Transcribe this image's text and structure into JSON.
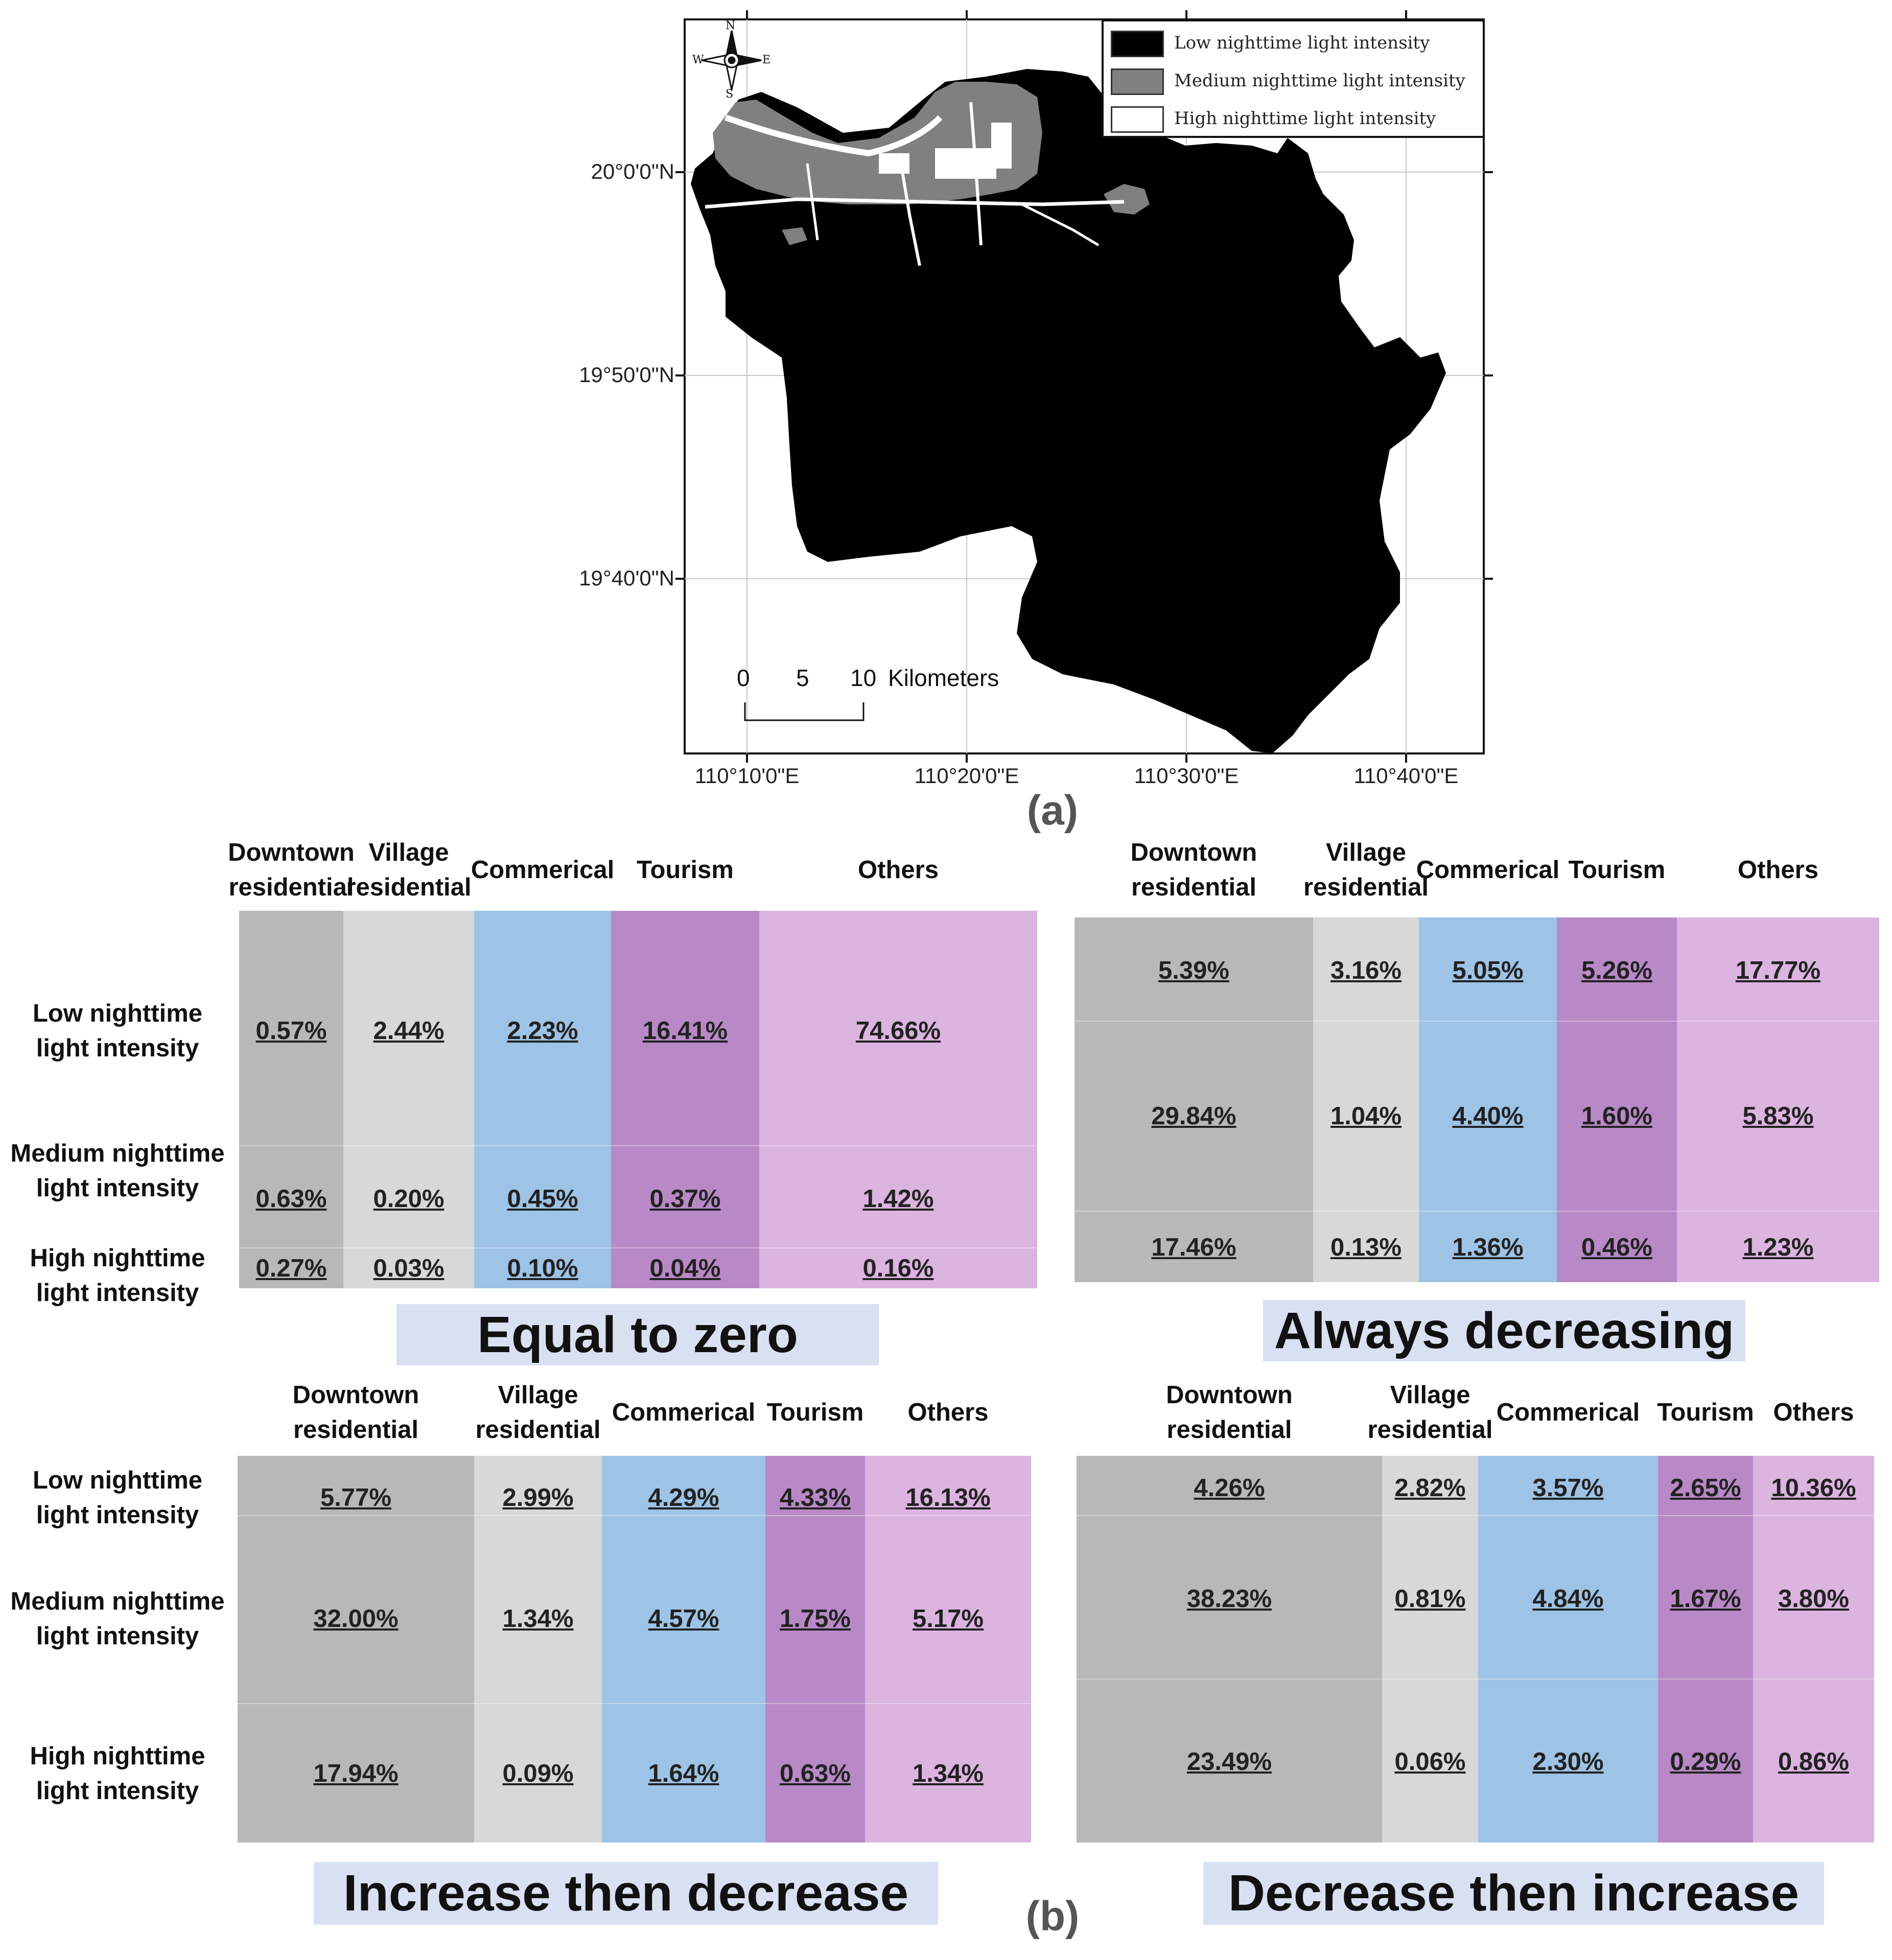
{
  "map": {
    "panel_label": "(a)",
    "lat_labels": [
      "20°0'0\"N",
      "19°50'0\"N",
      "19°40'0\"N"
    ],
    "lon_labels": [
      "110°10'0\"E",
      "110°20'0\"E",
      "110°30'0\"E",
      "110°40'0\"E"
    ],
    "north_arrow": {
      "n": "N",
      "s": "S",
      "e": "E",
      "w": "W"
    },
    "scale_bar": {
      "ticks": [
        "0",
        "5",
        "10"
      ],
      "unit": "Kilometers"
    },
    "legend": [
      {
        "label": "Low nighttime light intensity",
        "color": "#000000"
      },
      {
        "label": "Medium nighttime light intensity",
        "color": "#808080"
      },
      {
        "label": "High nighttime light intensity",
        "color": "#ffffff"
      }
    ]
  },
  "panel_b_label": "(b)",
  "category_colors": [
    "#b8b8b8",
    "#d8d8d8",
    "#9dc3e6",
    "#b889c6",
    "#dcb4e0"
  ],
  "tables": [
    {
      "caption": "Equal to zero",
      "columns": [
        "Downtown\nresidential",
        "Village\nresidential",
        "Commerical",
        "Tourism",
        "Others"
      ],
      "rows": [
        "Low nighttime\nlight intensity",
        "Medium nighttime\nlight intensity",
        "High nighttime\nlight intensity"
      ],
      "values": [
        [
          "0.57%",
          "2.44%",
          "2.23%",
          "16.41%",
          "74.66%"
        ],
        [
          "0.63%",
          "0.20%",
          "0.45%",
          "0.37%",
          "1.42%"
        ],
        [
          "0.27%",
          "0.03%",
          "0.10%",
          "0.04%",
          "0.16%"
        ]
      ]
    },
    {
      "caption": "Always decreasing",
      "columns": [
        "Downtown\nresidential",
        "Village\nresidential",
        "Commerical",
        "Tourism",
        "Others"
      ],
      "rows": [],
      "values": [
        [
          "5.39%",
          "3.16%",
          "5.05%",
          "5.26%",
          "17.77%"
        ],
        [
          "29.84%",
          "1.04%",
          "4.40%",
          "1.60%",
          "5.83%"
        ],
        [
          "17.46%",
          "0.13%",
          "1.36%",
          "0.46%",
          "1.23%"
        ]
      ]
    },
    {
      "caption": "Increase then decrease",
      "columns": [
        "Downtown\nresidential",
        "Village\nresidential",
        "Commerical",
        "Tourism",
        "Others"
      ],
      "rows": [
        "Low nighttime\nlight intensity",
        "Medium nighttime\nlight intensity",
        "High nighttime\nlight intensity"
      ],
      "values": [
        [
          "5.77%",
          "2.99%",
          "4.29%",
          "4.33%",
          "16.13%"
        ],
        [
          "32.00%",
          "1.34%",
          "4.57%",
          "1.75%",
          "5.17%"
        ],
        [
          "17.94%",
          "0.09%",
          "1.64%",
          "0.63%",
          "1.34%"
        ]
      ]
    },
    {
      "caption": "Decrease then increase",
      "columns": [
        "Downtown\nresidential",
        "Village\nresidential",
        "Commerical",
        "Tourism",
        "Others"
      ],
      "rows": [],
      "values": [
        [
          "4.26%",
          "2.82%",
          "3.57%",
          "2.65%",
          "10.36%"
        ],
        [
          "38.23%",
          "0.81%",
          "4.84%",
          "1.67%",
          "3.80%"
        ],
        [
          "23.49%",
          "0.06%",
          "2.30%",
          "0.29%",
          "0.86%"
        ]
      ]
    }
  ]
}
